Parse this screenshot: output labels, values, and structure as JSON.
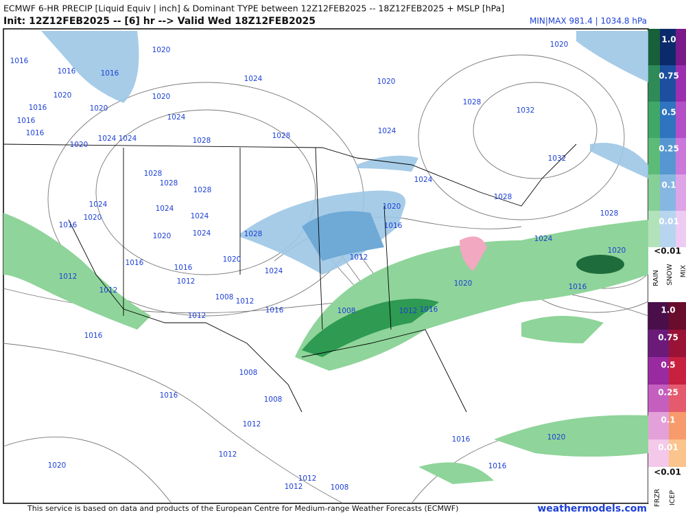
{
  "header": {
    "title": "ECMWF 6-HR PRECIP [Liquid Equiv | inch] & Dominant TYPE between 12Z12FEB2025 -- 18Z12FEB2025 + MSLP [hPa]",
    "init": "Init: 12Z12FEB2025 -- [6] hr --> Valid Wed 18Z12FEB2025",
    "minmax": "MIN|MAX 981.4 | 1034.8 hPa"
  },
  "isobar_labels": [
    "1020",
    "1016",
    "1016",
    "1016",
    "1024",
    "1020",
    "1020",
    "1020",
    "1016",
    "1020",
    "1028",
    "1032",
    "1016",
    "1024",
    "1024",
    "1016",
    "1020",
    "1024",
    "1024",
    "1028",
    "1028",
    "1020",
    "1032",
    "1028",
    "1028",
    "1028",
    "1024",
    "1028",
    "1028",
    "1024",
    "1024",
    "1024",
    "1020",
    "1016",
    "1020",
    "1016",
    "1020",
    "1024",
    "1028",
    "1024",
    "1020",
    "1020",
    "1016",
    "1016",
    "1012",
    "1024",
    "1012",
    "1012",
    "1012",
    "1008",
    "1012",
    "1020",
    "1016",
    "1016",
    "1012",
    "1008",
    "1012",
    "1016",
    "1016",
    "1008",
    "1016",
    "1008",
    "1012",
    "1016",
    "1020",
    "1012",
    "1020",
    "1016",
    "1012",
    "1012",
    "1008"
  ],
  "legend": {
    "upper": {
      "levels": [
        "1.0",
        "0.75",
        "0.5",
        "0.25",
        "0.1",
        "0.01"
      ],
      "below": "<0.01",
      "types": [
        "RAIN",
        "SNOW",
        "MIX"
      ]
    },
    "lower": {
      "levels": [
        "1.0",
        "0.75",
        "0.5",
        "0.25",
        "0.1",
        "0.01"
      ],
      "below": "<0.01",
      "types": [
        "FRZR",
        "ICEP"
      ]
    }
  },
  "footer": {
    "credit": "This service is based on data and products of the European Centre for Medium-range Weather Forecasts (ECMWF)",
    "brand": "weathermodels.com"
  }
}
